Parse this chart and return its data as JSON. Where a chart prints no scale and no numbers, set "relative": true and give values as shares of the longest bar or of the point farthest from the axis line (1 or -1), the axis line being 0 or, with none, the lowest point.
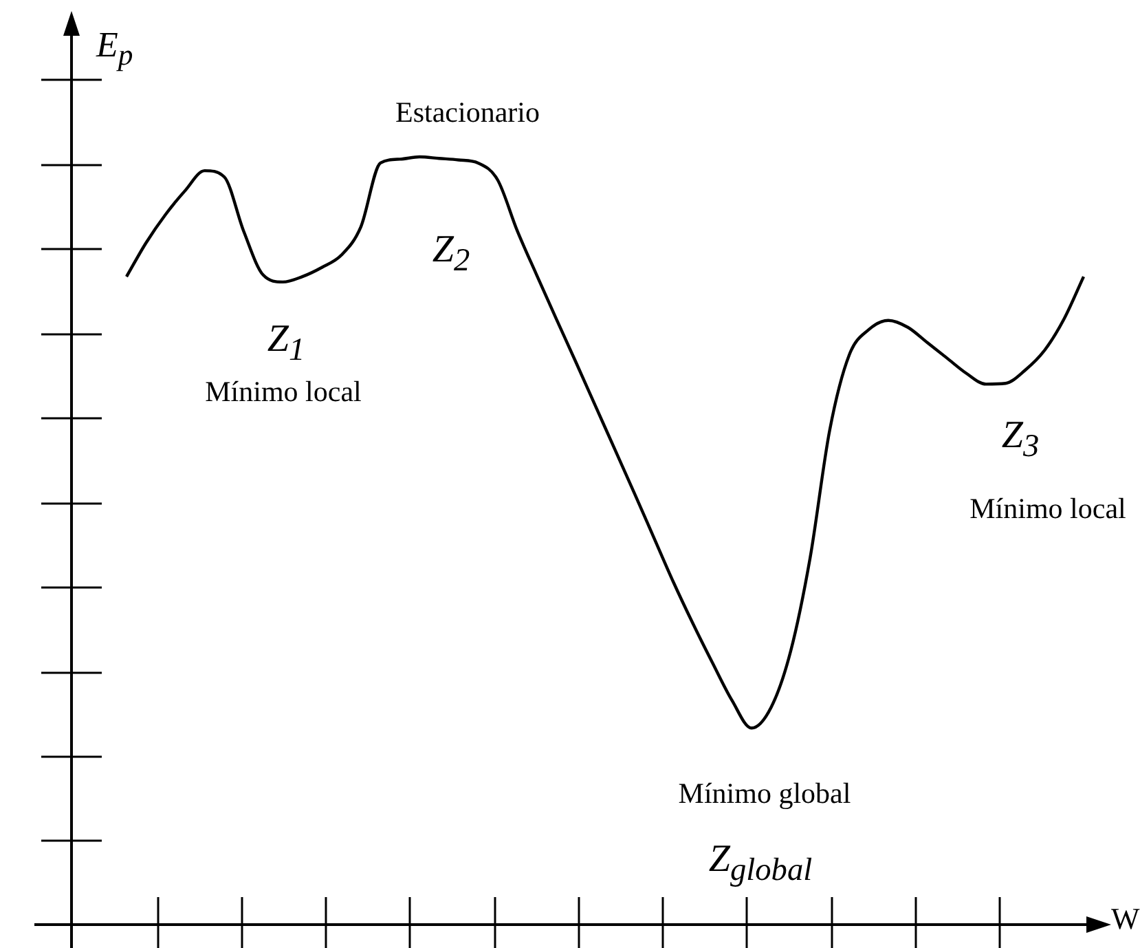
{
  "chart_data": {
    "type": "line",
    "relative": true,
    "color": "#000000",
    "xlabel": "W",
    "ylabel": "E$_{p}$",
    "categories": [
      null,
      null,
      null,
      null,
      null,
      null,
      null,
      null,
      null,
      null,
      null,
      null,
      null,
      null,
      null,
      null,
      null,
      null,
      null,
      null,
      null,
      null,
      null,
      null,
      null,
      null,
      null,
      null,
      null,
      null,
      null,
      null,
      null,
      null,
      null,
      null,
      null,
      null,
      null,
      null,
      null,
      null,
      null,
      null,
      null,
      null,
      null,
      null,
      null,
      null
    ],
    "values": [
      0.844,
      0.888,
      0.925,
      0.956,
      0.982,
      0.974,
      0.903,
      0.846,
      0.837,
      0.844,
      0.856,
      0.872,
      0.909,
      0.992,
      0.997,
      1,
      0.998,
      0.996,
      0.992,
      0.97,
      0.904,
      0.846,
      0.789,
      0.733,
      0.676,
      0.619,
      0.562,
      0.504,
      0.446,
      0.392,
      0.341,
      0.292,
      0.256,
      0.283,
      0.356,
      0.478,
      0.644,
      0.742,
      0.775,
      0.787,
      0.778,
      0.758,
      0.738,
      0.718,
      0.704,
      0.705,
      0.722,
      0.748,
      0.789,
      0.844
    ],
    "annotations": [
      "Estacionario",
      "Z$_{2}$",
      "Z$_{1}$",
      "Mínimo local",
      "Z$_{3}$",
      "Mínimo local",
      "Mínimo global",
      "Z$_{global}$"
    ]
  }
}
